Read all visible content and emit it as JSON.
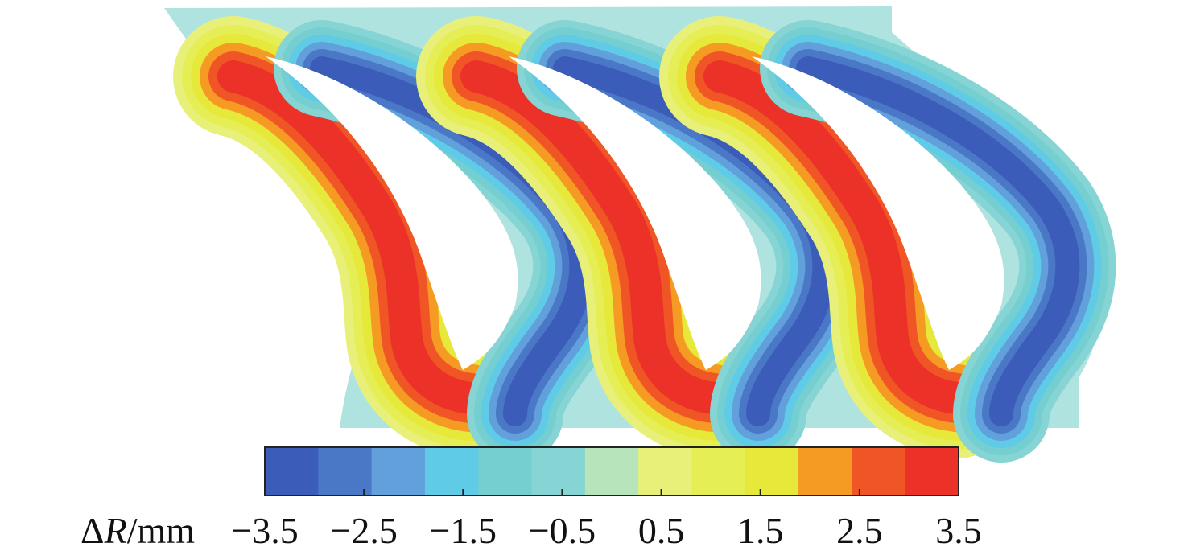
{
  "chart_data": {
    "type": "heatmap",
    "title": "",
    "quantity": "ΔR",
    "quantity_symbol": "Δ",
    "quantity_var": "R",
    "unit": "/mm",
    "colorbar": {
      "orientation": "horizontal",
      "placement": "bottom",
      "range": [
        -3.5,
        3.5
      ],
      "levels": [
        -3.5,
        -3.0,
        -2.5,
        -2.0,
        -1.5,
        -1.0,
        -0.5,
        0.0,
        0.5,
        1.0,
        1.5,
        2.0,
        2.5,
        3.0,
        3.5
      ],
      "tick_values": [
        -3.5,
        -2.5,
        -1.5,
        -0.5,
        0.5,
        1.5,
        2.5,
        3.5
      ],
      "tick_labels": [
        "−3.5",
        "−2.5",
        "−1.5",
        "−0.5",
        "0.5",
        "1.5",
        "2.5",
        "3.5"
      ],
      "colors": [
        "#3b5cb8",
        "#4a78c6",
        "#62a0dc",
        "#5fcbe6",
        "#75cfd0",
        "#86d4d4",
        "#b8e4bb",
        "#e8f07a",
        "#e6ee55",
        "#e6e83a",
        "#f59a22",
        "#f05526",
        "#ec3228"
      ]
    },
    "blade_count": 3,
    "field_colors": {
      "background": "#aee3e0",
      "extreme_negative": "#3b5cb8",
      "extreme_positive": "#ec3228"
    }
  }
}
